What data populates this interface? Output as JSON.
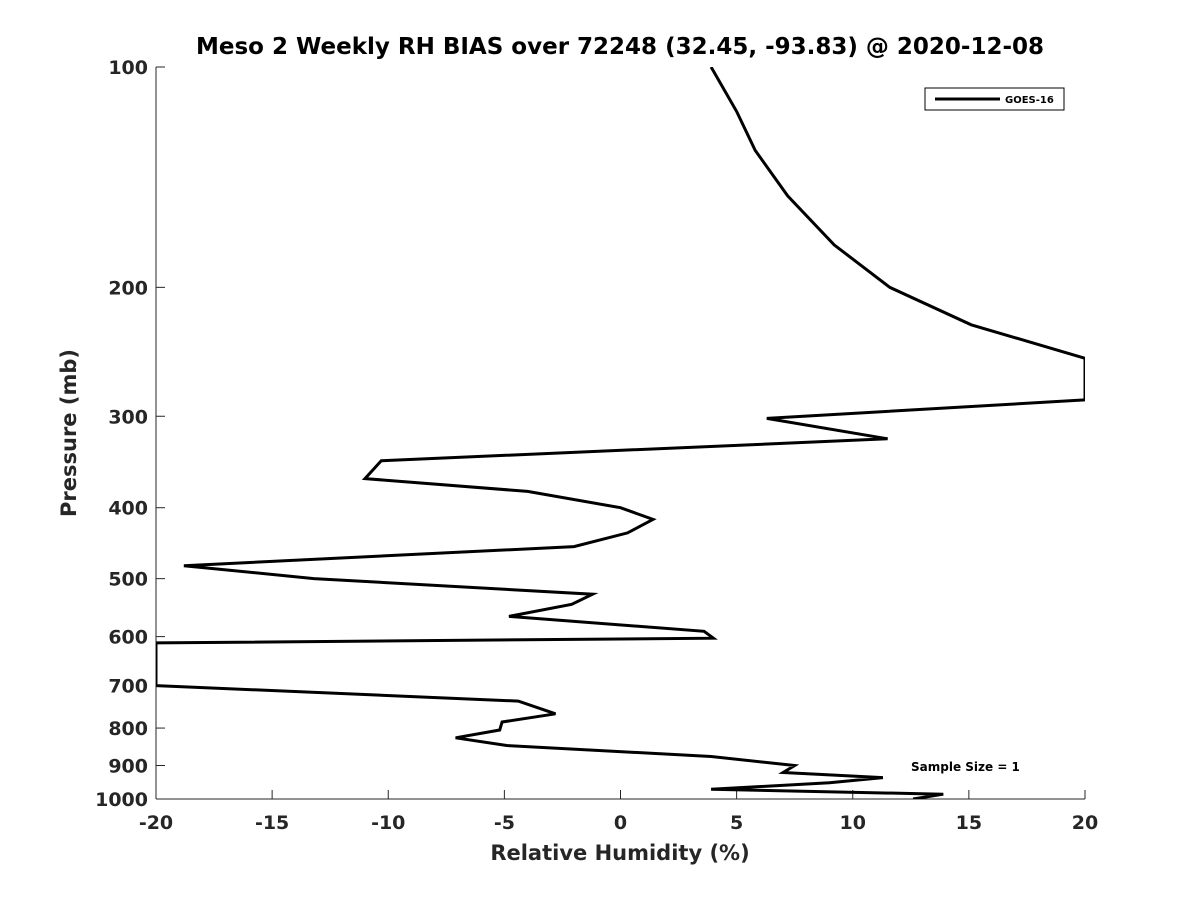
{
  "chart_data": {
    "type": "line",
    "title": "Meso 2 Weekly RH BIAS over 72248 (32.45, -93.83) @ 2020-12-08",
    "xlabel": "Relative Humidity (%)",
    "ylabel": "Pressure (mb)",
    "xlim": [
      -20,
      20
    ],
    "ylim": [
      100,
      1000
    ],
    "y_scale": "log",
    "y_reversed": true,
    "xticks": [
      -20,
      -15,
      -10,
      -5,
      0,
      5,
      10,
      15,
      20
    ],
    "xtick_labels": [
      "-20",
      "-15",
      "-10",
      "-5",
      "0",
      "5",
      "10",
      "15",
      "20"
    ],
    "yticks": [
      100,
      200,
      300,
      400,
      500,
      600,
      700,
      800,
      900,
      1000
    ],
    "ytick_labels": [
      "100",
      "200",
      "300",
      "400",
      "500",
      "600",
      "700",
      "800",
      "900",
      "1000"
    ],
    "grid": false,
    "legend_position": "top-right",
    "annotation": "Sample Size = 1",
    "series": [
      {
        "name": "GOES-16",
        "color": "#000000",
        "x": [
          3.9,
          5.0,
          5.8,
          7.2,
          9.2,
          11.6,
          15.1,
          20.0,
          20.0,
          6.3,
          11.5,
          -10.3,
          -11.0,
          -4.0,
          0.0,
          1.4,
          0.3,
          -2.0,
          -18.8,
          -13.2,
          -1.2,
          -2.1,
          -4.8,
          3.6,
          4.0,
          -20.0,
          -20.0,
          -4.4,
          -2.8,
          -5.1,
          -5.2,
          -7.1,
          -4.9,
          3.9,
          7.5,
          7.0,
          11.3,
          9.0,
          3.9,
          13.9,
          12.6
        ],
        "y": [
          100,
          115,
          130,
          150,
          175,
          200,
          225,
          250,
          285,
          302,
          322,
          345,
          365,
          380,
          400,
          415,
          433,
          452,
          480,
          500,
          525,
          542,
          563,
          590,
          603,
          612,
          700,
          735,
          765,
          785,
          805,
          825,
          845,
          875,
          900,
          920,
          935,
          950,
          970,
          985,
          1000
        ]
      }
    ]
  }
}
